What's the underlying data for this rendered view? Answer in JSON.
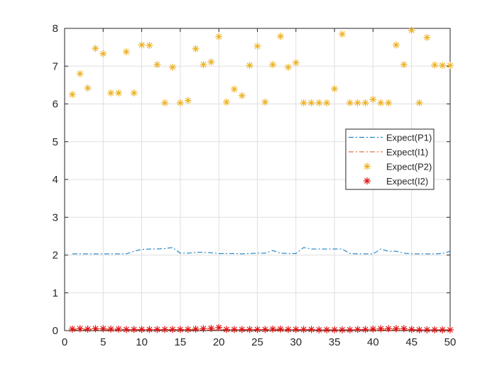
{
  "chart_data": {
    "type": "line",
    "title": "",
    "xlabel": "",
    "ylabel": "",
    "xlim": [
      0,
      50
    ],
    "ylim": [
      0,
      8
    ],
    "xticks": [
      0,
      5,
      10,
      15,
      20,
      25,
      30,
      35,
      40,
      45,
      50
    ],
    "yticks": [
      0,
      1,
      2,
      3,
      4,
      5,
      6,
      7,
      8
    ],
    "grid": true,
    "legend_position": "right",
    "x": [
      1,
      2,
      3,
      4,
      5,
      6,
      7,
      8,
      9,
      10,
      11,
      12,
      13,
      14,
      15,
      16,
      17,
      18,
      19,
      20,
      21,
      22,
      23,
      24,
      25,
      26,
      27,
      28,
      29,
      30,
      31,
      32,
      33,
      34,
      35,
      36,
      37,
      38,
      39,
      40,
      41,
      42,
      43,
      44,
      45,
      46,
      47,
      48,
      49,
      50
    ],
    "series": [
      {
        "name": "Expect(P1)",
        "style": "dashdot",
        "color": "#0072BD",
        "values": [
          2.03,
          2.03,
          2.03,
          2.03,
          2.03,
          2.03,
          2.03,
          2.03,
          2.1,
          2.15,
          2.16,
          2.16,
          2.17,
          2.2,
          2.05,
          2.05,
          2.07,
          2.07,
          2.06,
          2.04,
          2.04,
          2.04,
          2.03,
          2.04,
          2.05,
          2.05,
          2.12,
          2.05,
          2.04,
          2.04,
          2.2,
          2.16,
          2.16,
          2.16,
          2.16,
          2.16,
          2.04,
          2.03,
          2.03,
          2.03,
          2.16,
          2.1,
          2.1,
          2.05,
          2.03,
          2.03,
          2.03,
          2.03,
          2.04,
          2.1
        ]
      },
      {
        "name": "Expect(I1)",
        "style": "dashdot",
        "color": "#D95319",
        "values": [
          0.02,
          0.02,
          0.02,
          0.02,
          0.02,
          0.02,
          0.02,
          0.02,
          0.02,
          0.02,
          0.02,
          0.02,
          0.02,
          0.02,
          0.02,
          0.02,
          0.02,
          0.02,
          0.02,
          0.02,
          0.02,
          0.02,
          0.02,
          0.02,
          0.02,
          0.02,
          0.02,
          0.02,
          0.02,
          0.02,
          0.02,
          0.02,
          0.02,
          0.02,
          0.02,
          0.02,
          0.02,
          0.02,
          0.02,
          0.02,
          0.02,
          0.02,
          0.02,
          0.02,
          0.02,
          0.02,
          0.02,
          0.02,
          0.02,
          0.02
        ]
      },
      {
        "name": "Expect(P2)",
        "style": "asterisk",
        "color": "#EDB120",
        "values": [
          6.25,
          6.8,
          6.42,
          7.47,
          7.33,
          6.29,
          6.29,
          7.38,
          6.29,
          7.56,
          7.55,
          7.04,
          6.03,
          6.97,
          6.03,
          6.09,
          7.46,
          7.04,
          7.11,
          7.78,
          6.05,
          6.39,
          6.22,
          7.02,
          7.53,
          6.05,
          7.04,
          7.79,
          6.97,
          7.09,
          6.03,
          6.03,
          6.03,
          6.03,
          6.4,
          7.85,
          6.03,
          6.03,
          6.03,
          6.12,
          6.03,
          6.03,
          7.56,
          7.04,
          7.95,
          6.03,
          7.76,
          7.03,
          7.02,
          7.02
        ]
      },
      {
        "name": "Expect(I2)",
        "style": "asterisk",
        "color": "#E01010",
        "values": [
          0.04,
          0.05,
          0.04,
          0.05,
          0.05,
          0.04,
          0.04,
          0.03,
          0.03,
          0.03,
          0.03,
          0.03,
          0.03,
          0.03,
          0.03,
          0.03,
          0.04,
          0.05,
          0.06,
          0.08,
          0.03,
          0.03,
          0.03,
          0.03,
          0.03,
          0.03,
          0.04,
          0.04,
          0.03,
          0.03,
          0.03,
          0.03,
          0.02,
          0.02,
          0.02,
          0.02,
          0.02,
          0.03,
          0.03,
          0.04,
          0.05,
          0.05,
          0.05,
          0.05,
          0.03,
          0.02,
          0.02,
          0.02,
          0.02,
          0.02
        ]
      }
    ]
  }
}
